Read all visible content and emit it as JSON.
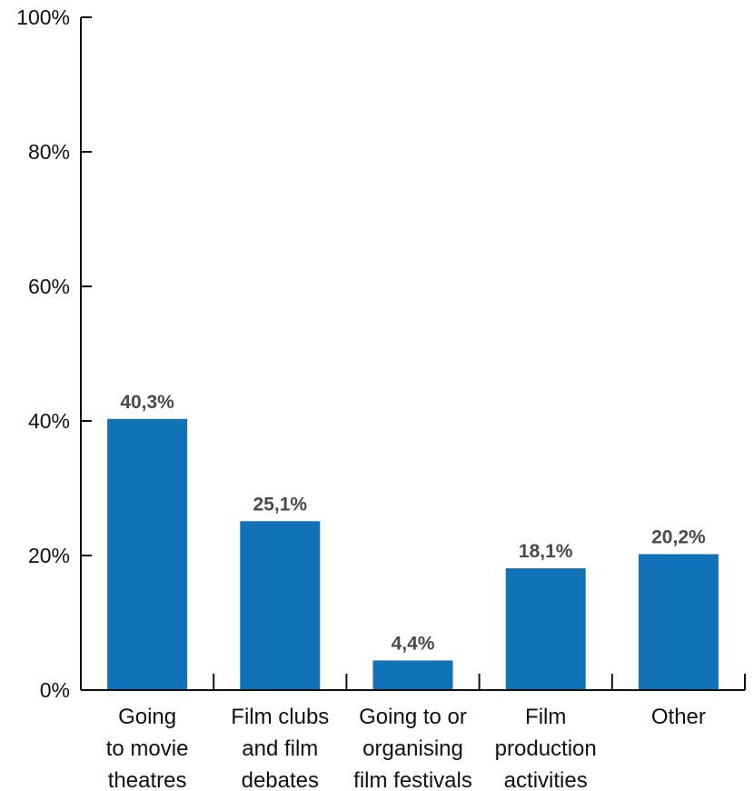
{
  "chart_data": {
    "type": "bar",
    "categories": [
      [
        "Going",
        "to movie",
        "theatres"
      ],
      [
        "Film clubs",
        "and film",
        "debates"
      ],
      [
        "Going to or",
        "organising",
        "film festivals"
      ],
      [
        "Film",
        "production",
        "activities"
      ],
      [
        "Other"
      ]
    ],
    "values": [
      40.3,
      25.1,
      4.4,
      18.1,
      20.2
    ],
    "data_labels": [
      "40,3%",
      "25,1%",
      "4,4%",
      "18,1%",
      "20,2%"
    ],
    "title": "",
    "xlabel": "",
    "ylabel": "",
    "ylim": [
      0,
      100
    ],
    "yticks": [
      0,
      20,
      40,
      60,
      80,
      100
    ],
    "ytick_labels": [
      "0%",
      "20%",
      "40%",
      "60%",
      "80%",
      "100%"
    ],
    "grid": false,
    "legend": "none",
    "colors": {
      "bar": "#1172b8",
      "axis": "#111111",
      "data_label": "#4a4a4a"
    }
  }
}
